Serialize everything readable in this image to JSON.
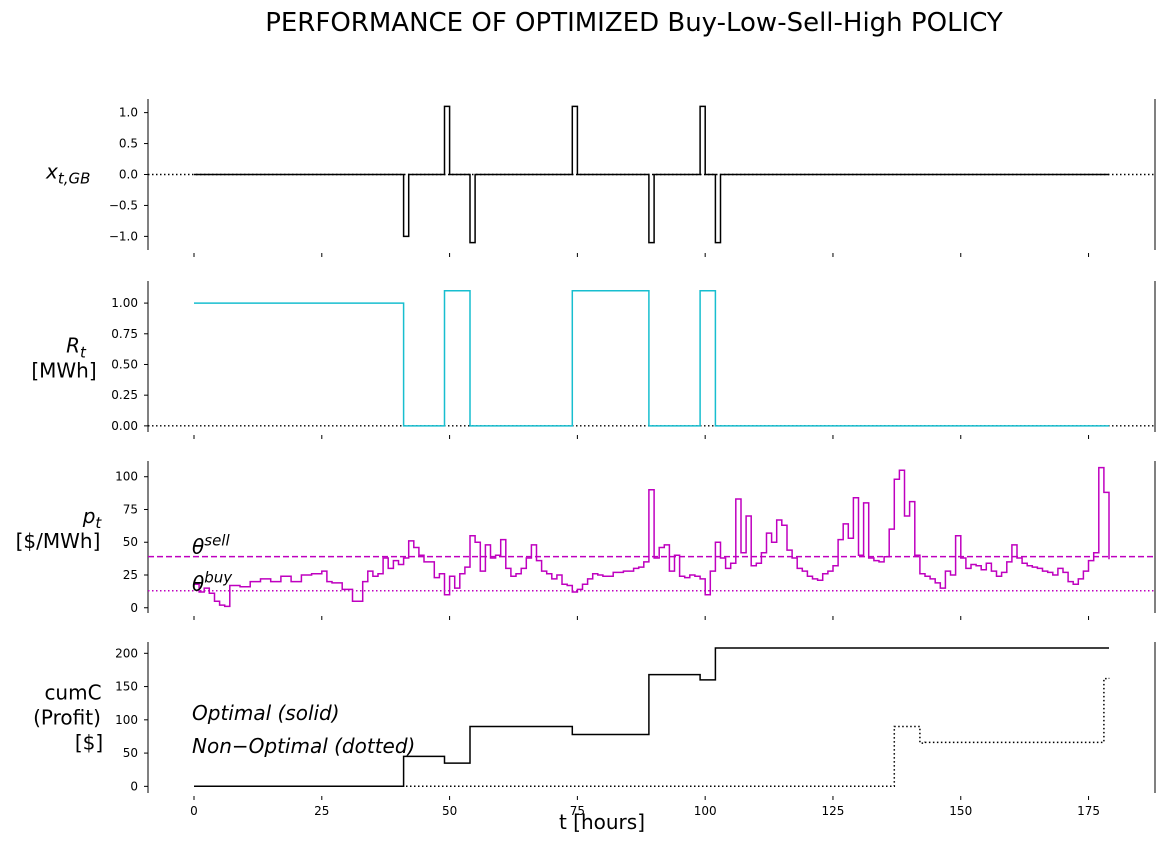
{
  "chart_data": {
    "title": "PERFORMANCE OF OPTIMIZED Buy-Low-Sell-High POLICY",
    "xlabel": "t [hours]",
    "xlim": [
      -9,
      188
    ],
    "x_ticks": [
      0,
      25,
      50,
      75,
      100,
      125,
      150,
      175
    ],
    "x_tick_labels": [
      "0",
      "25",
      "50",
      "75",
      "100",
      "125",
      "150",
      "175"
    ],
    "panels": [
      {
        "id": "x",
        "type": "line",
        "ylabel_lines": [
          "x_t,GB"
        ],
        "ylim": [
          -1.22,
          1.22
        ],
        "yticks": [
          1.0,
          0.5,
          0.0,
          -0.5,
          -1.0
        ],
        "ytick_labels": [
          "1.0",
          "0.5",
          "0.0",
          "−0.5",
          "−1.0"
        ],
        "refline": 0,
        "series": [
          {
            "color": "#000000",
            "style": "solid",
            "step": true,
            "x": [
              0,
              41,
              42,
              49,
              50,
              54,
              55,
              74,
              75,
              89,
              90,
              99,
              100,
              102,
              103,
              179
            ],
            "y": [
              0,
              -1,
              0,
              1.1,
              0,
              -1.1,
              0,
              1.1,
              0,
              -1.1,
              0,
              1.1,
              0,
              -1.1,
              0,
              0
            ]
          }
        ]
      },
      {
        "id": "R",
        "type": "line",
        "ylabel_lines": [
          "R_t",
          "[MWh]"
        ],
        "ylim": [
          -0.05,
          1.18
        ],
        "yticks": [
          1.0,
          0.75,
          0.5,
          0.25,
          0.0
        ],
        "ytick_labels": [
          "1.00",
          "0.75",
          "0.50",
          "0.25",
          "0.00"
        ],
        "refline": 0,
        "series": [
          {
            "color": "#17becf",
            "style": "solid",
            "step": true,
            "x": [
              0,
              41,
              49,
              54,
              74,
              89,
              99,
              102,
              179
            ],
            "y": [
              1.0,
              0,
              1.1,
              0,
              1.1,
              0,
              1.1,
              0,
              0
            ]
          }
        ]
      },
      {
        "id": "p",
        "type": "line",
        "ylabel_lines": [
          "p_t",
          "[$/MWh]"
        ],
        "ylim": [
          -4,
          112
        ],
        "yticks": [
          100,
          75,
          50,
          25,
          0
        ],
        "ytick_labels": [
          "100",
          "75",
          "50",
          "25",
          "0"
        ],
        "theta_sell": 39,
        "theta_buy": 13,
        "theta_labels": {
          "sell": "θ^sell",
          "buy": "θ^buy"
        },
        "series": [
          {
            "color": "#bf00bf",
            "style": "solid",
            "step": true,
            "x": [
              0,
              1,
              2,
              3,
              4,
              5,
              6,
              7,
              9,
              11,
              13,
              15,
              17,
              19,
              21,
              23,
              25,
              26,
              27,
              29,
              31,
              33,
              34,
              35,
              36,
              37,
              38,
              39,
              40,
              41,
              42,
              43,
              44,
              45,
              47,
              48,
              49,
              50,
              51,
              52,
              53,
              54,
              55,
              56,
              57,
              58,
              59,
              60,
              61,
              62,
              63,
              64,
              65,
              66,
              67,
              68,
              69,
              70,
              71,
              72,
              73,
              74,
              75,
              76,
              77,
              78,
              79,
              80,
              82,
              84,
              86,
              87,
              88,
              89,
              90,
              91,
              92,
              93,
              94,
              95,
              96,
              97,
              98,
              99,
              100,
              101,
              102,
              103,
              104,
              105,
              106,
              107,
              108,
              109,
              110,
              111,
              112,
              113,
              114,
              115,
              116,
              117,
              118,
              119,
              120,
              121,
              122,
              123,
              124,
              125,
              126,
              127,
              128,
              129,
              130,
              131,
              132,
              133,
              134,
              135,
              136,
              137,
              138,
              139,
              140,
              141,
              142,
              143,
              144,
              145,
              146,
              147,
              148,
              149,
              150,
              151,
              152,
              153,
              154,
              155,
              156,
              157,
              158,
              159,
              160,
              161,
              162,
              163,
              164,
              165,
              166,
              167,
              168,
              169,
              170,
              171,
              172,
              173,
              174,
              175,
              176,
              177,
              178,
              179
            ],
            "y": [
              18,
              12,
              15,
              11,
              5,
              2,
              1,
              17,
              16,
              20,
              22,
              20,
              24,
              20,
              25,
              26,
              28,
              20,
              19,
              14,
              5,
              20,
              28,
              24,
              26,
              38,
              30,
              36,
              33,
              38,
              51,
              46,
              40,
              35,
              23,
              26,
              10,
              24,
              15,
              26,
              31,
              55,
              50,
              28,
              48,
              38,
              40,
              52,
              30,
              24,
              26,
              30,
              38,
              48,
              36,
              28,
              26,
              22,
              25,
              18,
              17,
              12,
              14,
              18,
              22,
              26,
              25,
              24,
              27,
              28,
              30,
              31,
              35,
              90,
              38,
              46,
              48,
              28,
              40,
              24,
              23,
              25,
              24,
              22,
              10,
              28,
              50,
              38,
              30,
              34,
              83,
              42,
              70,
              32,
              34,
              42,
              57,
              50,
              67,
              63,
              44,
              38,
              30,
              28,
              24,
              22,
              21,
              26,
              28,
              32,
              52,
              64,
              53,
              84,
              40,
              80,
              38,
              36,
              35,
              39,
              60,
              98,
              105,
              70,
              81,
              40,
              26,
              24,
              22,
              19,
              15,
              28,
              25,
              55,
              38,
              30,
              33,
              32,
              29,
              34,
              28,
              24,
              27,
              35,
              48,
              38,
              34,
              32,
              31,
              30,
              28,
              27,
              25,
              30,
              27,
              20,
              18,
              22,
              28,
              36,
              42,
              107,
              88,
              37
            ]
          }
        ]
      },
      {
        "id": "cumC",
        "type": "line",
        "ylabel_lines": [
          "cumC",
          "(Profit)",
          "[$]"
        ],
        "ylim": [
          -10,
          217
        ],
        "yticks": [
          200,
          150,
          100,
          50,
          0
        ],
        "ytick_labels": [
          "200",
          "150",
          "100",
          "50",
          "0"
        ],
        "annotations": [
          "Optimal (solid)",
          "Non−Optimal (dotted)"
        ],
        "series": [
          {
            "color": "#000000",
            "style": "solid",
            "step": true,
            "x": [
              0,
              41,
              49,
              54,
              74,
              89,
              99,
              102,
              179
            ],
            "y": [
              0,
              45,
              35,
              90,
              78,
              168,
              160,
              208,
              208
            ]
          },
          {
            "color": "#000000",
            "style": "dotted",
            "step": true,
            "x": [
              0,
              137,
              142,
              143,
              177,
              178,
              179
            ],
            "y": [
              0,
              90,
              65,
              66,
              66,
              162,
              163
            ]
          }
        ]
      }
    ]
  }
}
